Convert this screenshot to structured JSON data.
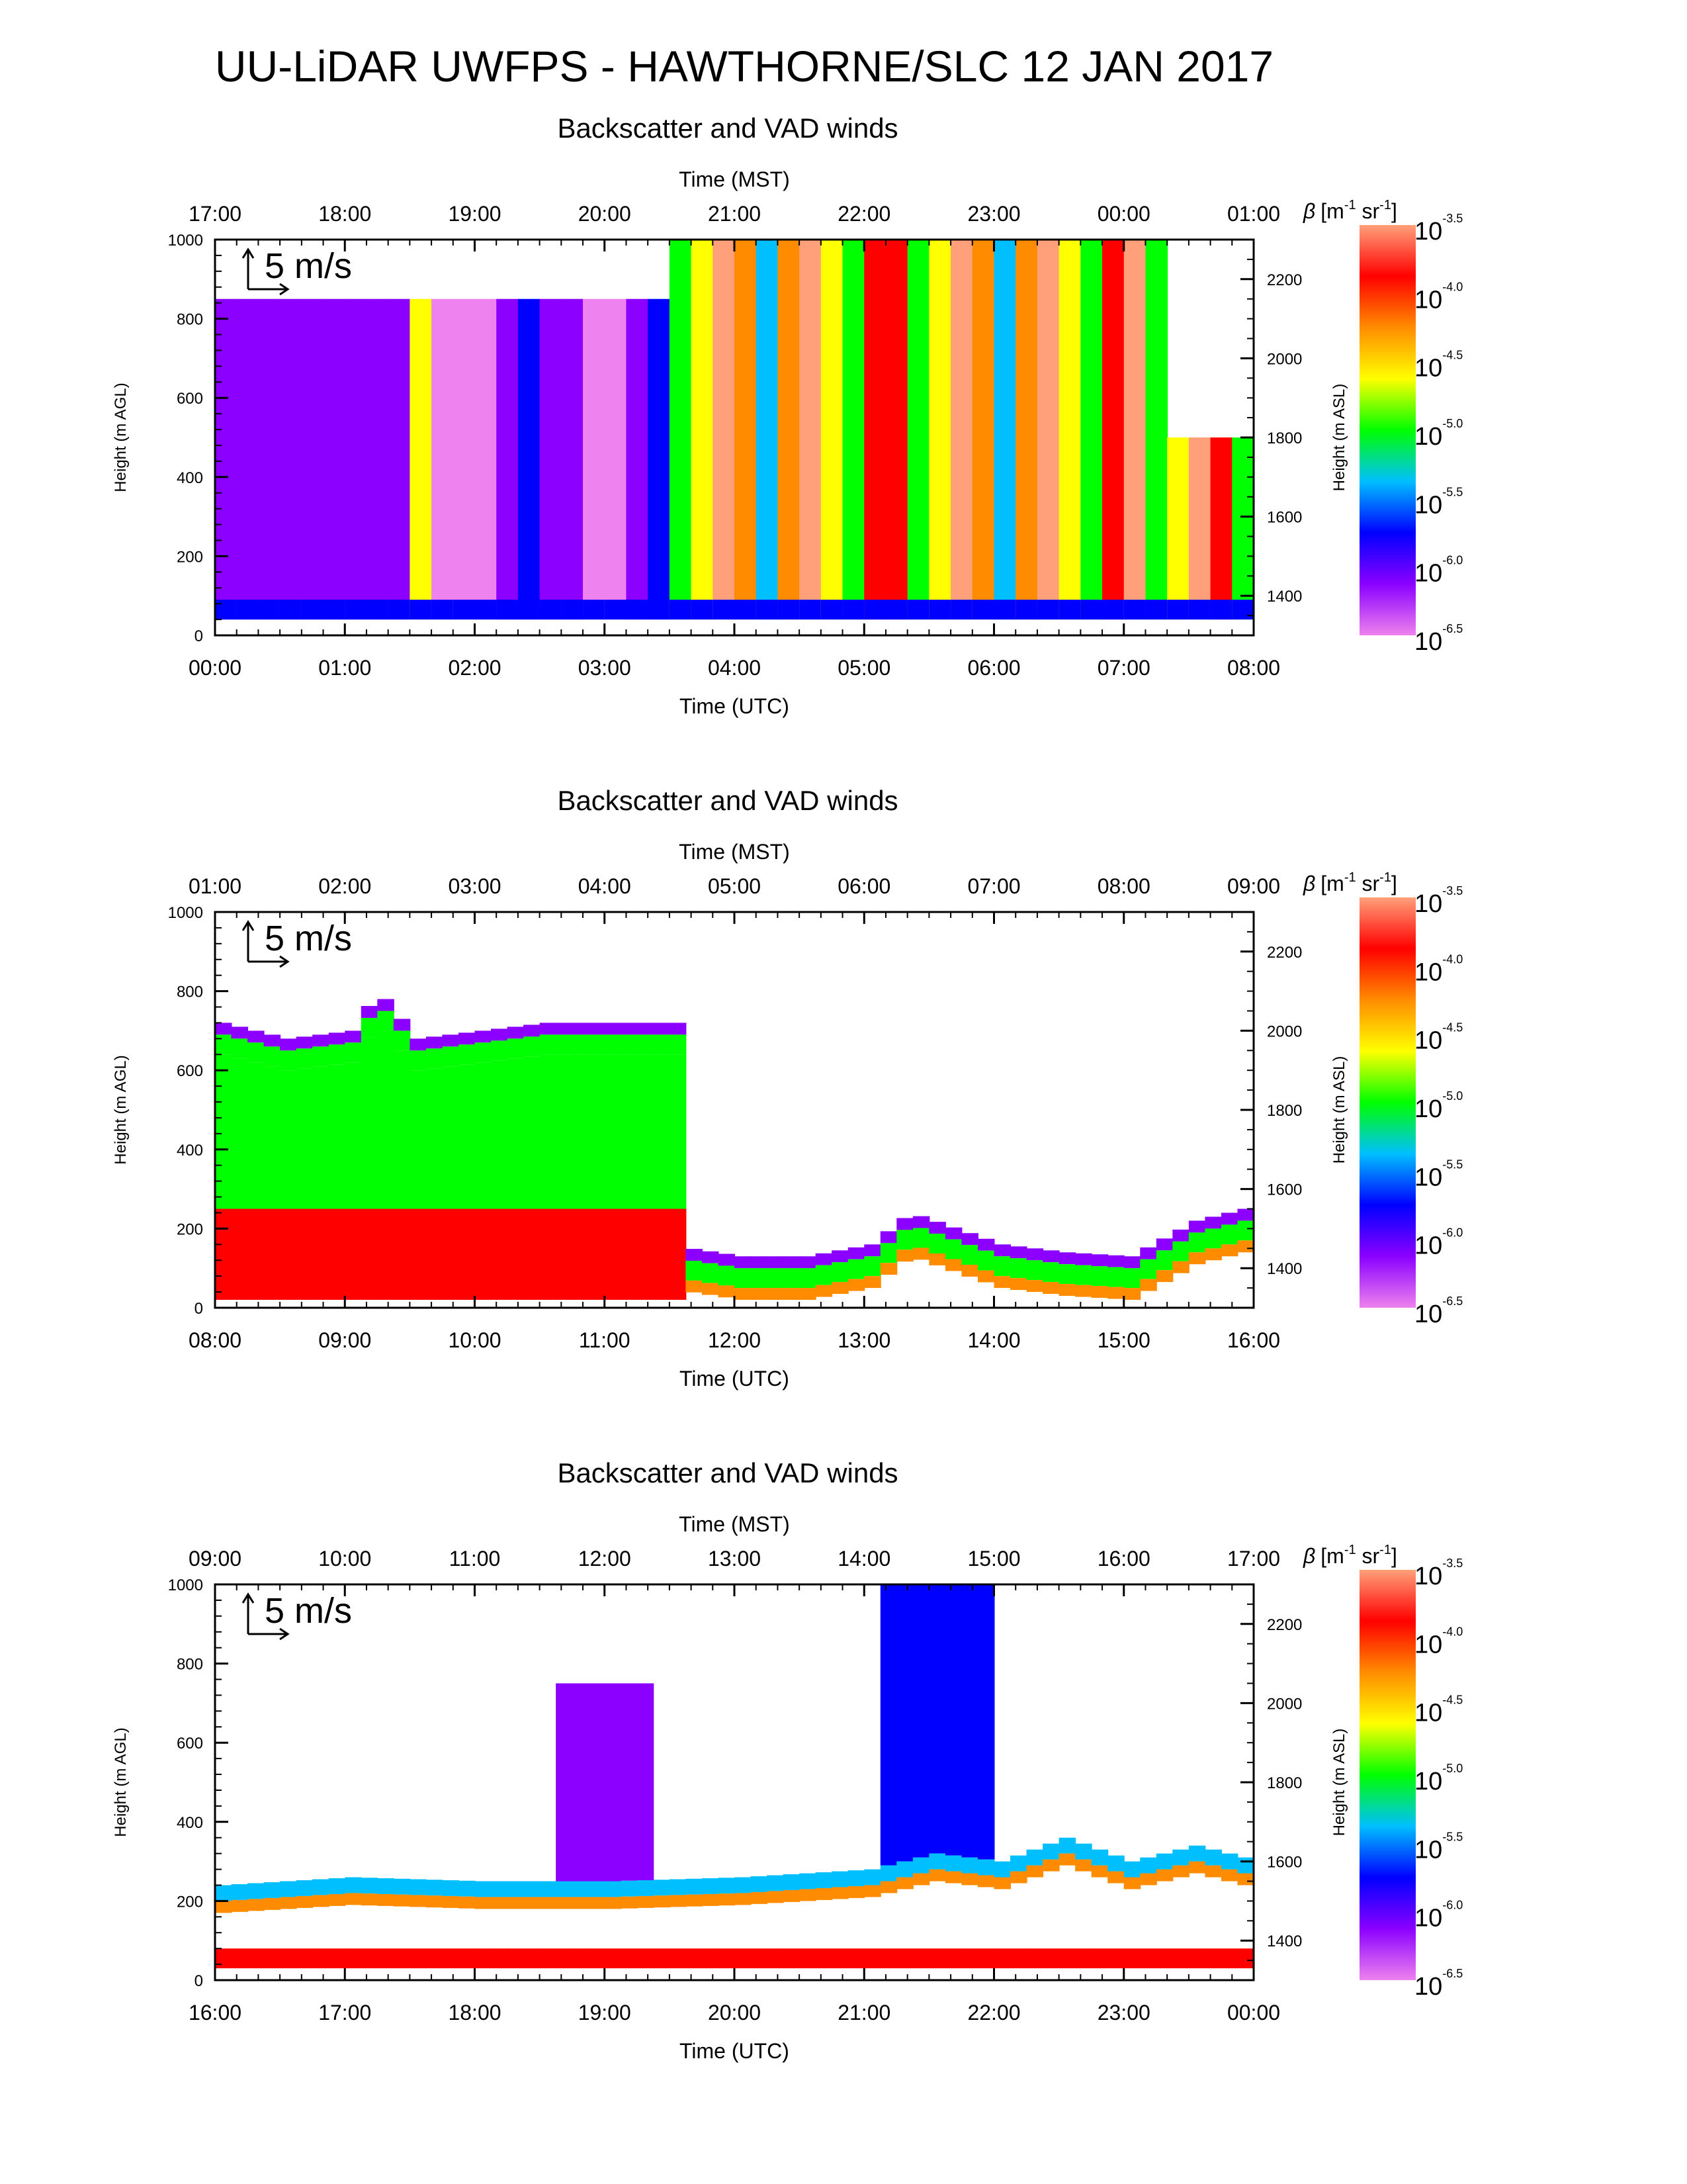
{
  "page": {
    "title": "UU-LiDAR UWFPS - HAWTHORNE/SLC 12 JAN 2017"
  },
  "colors": {
    "axis": "#000000",
    "colorbar_stops": [
      "#ee82ee",
      "#8b00ff",
      "#0000ff",
      "#00bfff",
      "#00ff00",
      "#ffff00",
      "#ff8c00",
      "#ff0000",
      "#ffa07a"
    ]
  },
  "chart_data": [
    {
      "type": "heatmap",
      "title": "Backscatter and VAD winds",
      "top_axis_title": "Time (MST)",
      "top_ticks": [
        "17:00",
        "18:00",
        "19:00",
        "20:00",
        "21:00",
        "22:00",
        "23:00",
        "00:00",
        "01:00"
      ],
      "xlabel": "Time (UTC)",
      "bottom_ticks": [
        "00:00",
        "01:00",
        "02:00",
        "03:00",
        "04:00",
        "05:00",
        "06:00",
        "07:00",
        "08:00"
      ],
      "ylabel": "Height (m AGL)",
      "ylim": [
        0,
        1000
      ],
      "y_ticks": [
        "0",
        "200",
        "400",
        "600",
        "800",
        "1000"
      ],
      "y2label": "Height (m ASL)",
      "y2_ticks": [
        "1400",
        "1600",
        "1800",
        "2000",
        "2200"
      ],
      "y2lim": [
        1300,
        2300
      ],
      "wind_reference": "5 m/s",
      "colorbar": {
        "label_symbol": "β",
        "label_units": "[m",
        "label_exp1": "-1",
        "label_mid": " sr",
        "label_exp2": "-1",
        "label_end": "]",
        "base": "10",
        "exponents": [
          "-3.5",
          "-4.0",
          "-4.5",
          "-5.0",
          "-5.5",
          "-6.0",
          "-6.5"
        ]
      },
      "backscatter_log10": {
        "time_utc_hours": [
          0,
          1,
          2,
          3,
          3.5,
          4,
          5,
          6,
          7,
          7.5,
          8
        ],
        "note_ranges": [
          {
            "from": 0,
            "to": 3.5,
            "level": -6.3
          },
          {
            "from": 3.5,
            "to": 8,
            "level": -4.2
          }
        ]
      }
    },
    {
      "type": "heatmap",
      "title": "Backscatter and VAD winds",
      "top_axis_title": "Time (MST)",
      "top_ticks": [
        "01:00",
        "02:00",
        "03:00",
        "04:00",
        "05:00",
        "06:00",
        "07:00",
        "08:00",
        "09:00"
      ],
      "xlabel": "Time (UTC)",
      "bottom_ticks": [
        "08:00",
        "09:00",
        "10:00",
        "11:00",
        "12:00",
        "13:00",
        "14:00",
        "15:00",
        "16:00"
      ],
      "ylabel": "Height (m AGL)",
      "ylim": [
        0,
        1000
      ],
      "y_ticks": [
        "0",
        "200",
        "400",
        "600",
        "800",
        "1000"
      ],
      "y2label": "Height (m ASL)",
      "y2_ticks": [
        "1400",
        "1600",
        "1800",
        "2000",
        "2200"
      ],
      "y2lim": [
        1300,
        2300
      ],
      "wind_reference": "5 m/s",
      "colorbar": {
        "label_symbol": "β",
        "label_units": "[m",
        "label_exp1": "-1",
        "label_mid": " sr",
        "label_exp2": "-1",
        "label_end": "]",
        "base": "10",
        "exponents": [
          "-3.5",
          "-4.0",
          "-4.5",
          "-5.0",
          "-5.5",
          "-6.0",
          "-6.5"
        ]
      },
      "cloud_top_height_m_agl": {
        "time_utc_hours": [
          8,
          8.5,
          9,
          9.2,
          9.5,
          10,
          10.5,
          11,
          11.5,
          11.6,
          12,
          12.5,
          13,
          13.3,
          14,
          14.5,
          15,
          15.5,
          16
        ],
        "heights": [
          720,
          680,
          700,
          800,
          680,
          700,
          720,
          720,
          720,
          150,
          130,
          130,
          160,
          240,
          160,
          140,
          130,
          220,
          260
        ]
      }
    },
    {
      "type": "heatmap",
      "title": "Backscatter and VAD winds",
      "top_axis_title": "Time (MST)",
      "top_ticks": [
        "09:00",
        "10:00",
        "11:00",
        "12:00",
        "13:00",
        "14:00",
        "15:00",
        "16:00",
        "17:00"
      ],
      "xlabel": "Time (UTC)",
      "bottom_ticks": [
        "16:00",
        "17:00",
        "18:00",
        "19:00",
        "20:00",
        "21:00",
        "22:00",
        "23:00",
        "00:00"
      ],
      "ylabel": "Height (m AGL)",
      "ylim": [
        0,
        1000
      ],
      "y_ticks": [
        "0",
        "200",
        "400",
        "600",
        "800",
        "1000"
      ],
      "y2label": "Height (m ASL)",
      "y2_ticks": [
        "1400",
        "1600",
        "1800",
        "2000",
        "2200"
      ],
      "y2lim": [
        1300,
        2300
      ],
      "wind_reference": "5 m/s",
      "colorbar": {
        "label_symbol": "β",
        "label_units": "[m",
        "label_exp1": "-1",
        "label_mid": " sr",
        "label_exp2": "-1",
        "label_end": "]",
        "base": "10",
        "exponents": [
          "-3.5",
          "-4.0",
          "-4.5",
          "-5.0",
          "-5.5",
          "-6.0",
          "-6.5"
        ]
      },
      "mixed_layer_top_m_agl": {
        "time_utc_hours": [
          16,
          17,
          18,
          19,
          20,
          21,
          21.5,
          22,
          22.5,
          23,
          23.5,
          24
        ],
        "heights": [
          240,
          260,
          250,
          250,
          260,
          280,
          320,
          300,
          360,
          300,
          340,
          300
        ]
      }
    }
  ]
}
